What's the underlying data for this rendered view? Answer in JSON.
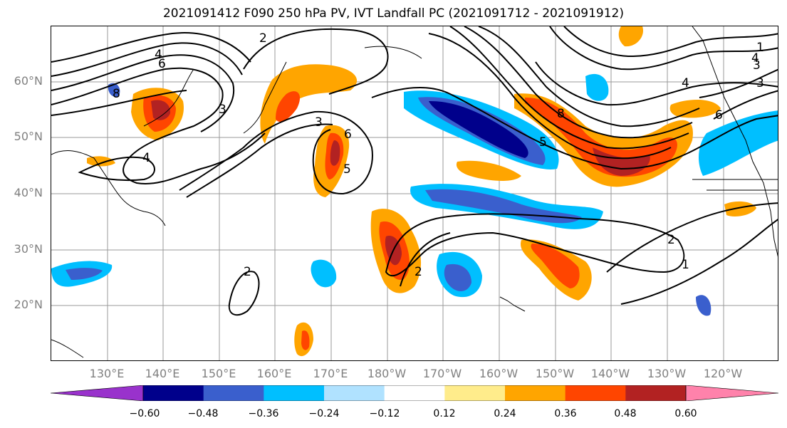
{
  "title": "2021091412 F090 250 hPa PV, IVT Landfall PC (2021091712 - 2021091912)",
  "lat_labels": [
    "60°N",
    "50°N",
    "40°N",
    "30°N",
    "20°N"
  ],
  "lon_labels": [
    "130°E",
    "140°E",
    "150°E",
    "160°E",
    "170°E",
    "180°W",
    "170°W",
    "160°W",
    "150°W",
    "140°W",
    "130°W",
    "120°W"
  ],
  "colorbar": {
    "colors": [
      "#9932cc",
      "#00008b",
      "#3a5fcd",
      "#00bfff",
      "#b0e2ff",
      "#ffffff",
      "#ffec8b",
      "#ffa500",
      "#ff4500",
      "#b22222",
      "#ff82ab"
    ],
    "tick_labels": [
      "−0.60",
      "−0.48",
      "−0.36",
      "−0.24",
      "−0.12",
      "0.12",
      "0.24",
      "0.36",
      "0.48",
      "0.60"
    ]
  },
  "contour_labels": [
    "2",
    "4",
    "6",
    "8",
    "3",
    "4",
    "3",
    "6",
    "5",
    "2",
    "4",
    "3",
    "6",
    "8",
    "5",
    "2",
    "1",
    "2",
    "1",
    "4",
    "3"
  ]
}
